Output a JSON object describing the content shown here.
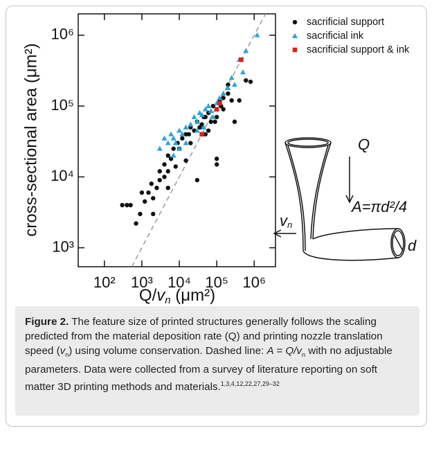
{
  "chart_data": {
    "type": "scatter",
    "ylabel": "cross-sectional area (μm²)",
    "xlabel_parts": [
      "Q/",
      "v",
      "n",
      " (μm²)"
    ],
    "log_x": true,
    "log_y": true,
    "xlim": [
      20,
      3700000
    ],
    "ylim": [
      540,
      2000000
    ],
    "xticks": [
      {
        "value": 100,
        "label": "10²"
      },
      {
        "value": 1000,
        "label": "10³"
      },
      {
        "value": 10000,
        "label": "10⁴"
      },
      {
        "value": 100000,
        "label": "10⁵"
      },
      {
        "value": 1000000,
        "label": "10⁶"
      }
    ],
    "yticks": [
      {
        "value": 1000,
        "label": "10³"
      },
      {
        "value": 10000,
        "label": "10⁴"
      },
      {
        "value": 100000,
        "label": "10⁵"
      },
      {
        "value": 1000000,
        "label": "10⁶"
      }
    ],
    "legend": "top-right",
    "series": [
      {
        "name": "sacrificial support",
        "color": "#111111",
        "marker": "circle",
        "x": [
          300,
          400,
          500,
          700,
          900,
          1000,
          1200,
          1500,
          1800,
          2000,
          2500,
          3000,
          3000,
          4000,
          4000,
          5000,
          5000,
          6000,
          7000,
          8000,
          9000,
          10000,
          12000,
          15000,
          15000,
          20000,
          20000,
          25000,
          30000,
          30000,
          40000,
          50000,
          50000,
          60000,
          70000,
          80000,
          100000,
          100000,
          100000,
          120000,
          150000,
          150000,
          200000,
          200000,
          250000,
          300000,
          400000,
          600000,
          800000,
          18000,
          35000,
          45000,
          90000,
          130000,
          60000,
          5000,
          2000
        ],
        "values": [
          4000,
          4000,
          4000,
          2200,
          3000,
          6000,
          4500,
          6000,
          8000,
          5000,
          7000,
          9000,
          12000,
          10000,
          15000,
          12000,
          20000,
          18000,
          25000,
          14000,
          30000,
          25000,
          35000,
          17000,
          40000,
          30000,
          50000,
          45000,
          60000,
          9000,
          55000,
          70000,
          40000,
          80000,
          60000,
          100000,
          70000,
          15000,
          18000,
          120000,
          130000,
          90000,
          200000,
          150000,
          120000,
          60000,
          120000,
          230000,
          220000,
          40000,
          50000,
          70000,
          60000,
          100000,
          45000,
          7000,
          3000
        ]
      },
      {
        "name": "sacrificial ink",
        "color": "#2aa3dc",
        "marker": "triangle",
        "x": [
          4000,
          5000,
          6000,
          7000,
          8000,
          10000,
          10000,
          12000,
          15000,
          15000,
          20000,
          25000,
          30000,
          35000,
          40000,
          50000,
          60000,
          70000,
          80000,
          100000,
          120000,
          150000,
          200000,
          250000,
          300000,
          400000,
          500000,
          600000,
          1200000,
          30000,
          45000,
          7000,
          3000
        ],
        "values": [
          35000,
          30000,
          40000,
          35000,
          30000,
          45000,
          25000,
          40000,
          50000,
          30000,
          55000,
          70000,
          60000,
          80000,
          75000,
          90000,
          100000,
          85000,
          70000,
          110000,
          130000,
          150000,
          180000,
          250000,
          200000,
          450000,
          300000,
          600000,
          1000000,
          45000,
          50000,
          20000,
          25000
        ]
      },
      {
        "name": "sacrificial support & ink",
        "color": "#e0201b",
        "marker": "square",
        "x": [
          40000,
          100000,
          120000,
          450000
        ],
        "values": [
          40000,
          90000,
          110000,
          450000
        ]
      }
    ],
    "reference_line": {
      "x": [
        540,
        2000000
      ],
      "values": [
        540,
        2000000
      ],
      "color": "#9a9a9a",
      "dashed": true
    },
    "annotations": {
      "flow": "Q",
      "speed": "v",
      "speed_sub": "n",
      "area": "A=πd²/4",
      "diameter": "d"
    }
  },
  "caption": [
    "Figure 2.",
    " The feature size of printed structures generally follows the scaling predicted from the material deposition rate (Q) and printing nozzle translation speed (",
    "v",
    "n",
    ") using volume conservation. Dashed line: ",
    "A = Q/v",
    "n",
    " with no adjustable parameters. Data were collected from a survey of literature reporting on soft matter 3D printing methods and materials.",
    "1,3,4,12,22,27,29–32"
  ]
}
